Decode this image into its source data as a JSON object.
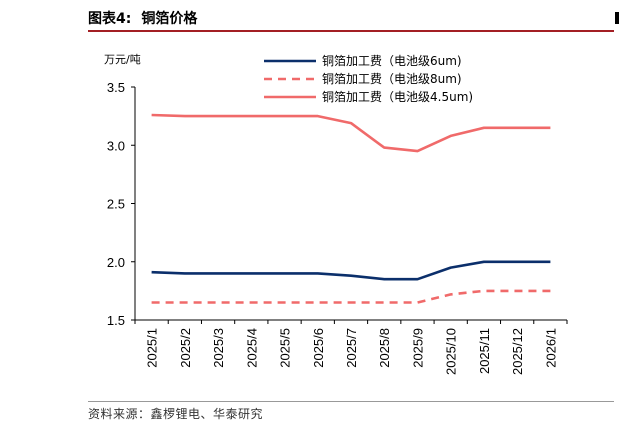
{
  "figure": {
    "number": "图表4:",
    "title": "铜箔价格",
    "source": "资料来源：鑫椤锂电、华泰研究"
  },
  "chart_data": {
    "type": "line",
    "ylabel": "万元/吨",
    "ylim": [
      1.5,
      3.5
    ],
    "yticks": [
      "1.5",
      "2.0",
      "2.5",
      "3.0",
      "3.5"
    ],
    "categories": [
      "2025/1",
      "2025/2",
      "2025/3",
      "2025/4",
      "2025/5",
      "2025/6",
      "2025/7",
      "2025/8",
      "2025/9",
      "2025/10",
      "2025/11",
      "2025/12",
      "2026/1"
    ],
    "legend_position": "top",
    "grid": false,
    "series": [
      {
        "name": "铜箔加工费（电池级6um)",
        "color": "#0b2f6b",
        "style": "solid",
        "values": [
          1.91,
          1.9,
          1.9,
          1.9,
          1.9,
          1.9,
          1.88,
          1.85,
          1.85,
          1.95,
          2.0,
          2.0,
          2.0
        ]
      },
      {
        "name": "铜箔加工费（电池级8um)",
        "color": "#f06a6a",
        "style": "dashed",
        "values": [
          1.65,
          1.65,
          1.65,
          1.65,
          1.65,
          1.65,
          1.65,
          1.65,
          1.65,
          1.72,
          1.75,
          1.75,
          1.75
        ]
      },
      {
        "name": "铜箔加工费（电池级4.5um)",
        "color": "#f06a6a",
        "style": "solid",
        "values": [
          3.26,
          3.25,
          3.25,
          3.25,
          3.25,
          3.25,
          3.19,
          2.98,
          2.95,
          3.08,
          3.15,
          3.15,
          3.15
        ]
      }
    ]
  }
}
